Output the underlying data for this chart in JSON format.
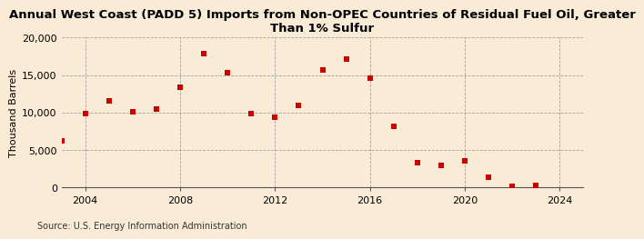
{
  "title": "Annual West Coast (PADD 5) Imports from Non-OPEC Countries of Residual Fuel Oil, Greater\nThan 1% Sulfur",
  "ylabel": "Thousand Barrels",
  "source": "Source: U.S. Energy Information Administration",
  "background_color": "#faebd7",
  "plot_bg_color": "#faebd7",
  "marker_color": "#cc0000",
  "years": [
    2003,
    2004,
    2005,
    2006,
    2007,
    2008,
    2009,
    2010,
    2011,
    2012,
    2013,
    2014,
    2015,
    2016,
    2017,
    2018,
    2019,
    2020,
    2021,
    2022,
    2023,
    2024
  ],
  "values": [
    6200,
    9800,
    11500,
    10100,
    10400,
    13400,
    17800,
    15300,
    9900,
    9400,
    11000,
    15700,
    17100,
    14600,
    8200,
    3300,
    2900,
    3600,
    1400,
    100,
    300,
    null
  ],
  "xlim": [
    2003,
    2025
  ],
  "ylim": [
    0,
    20000
  ],
  "yticks": [
    0,
    5000,
    10000,
    15000,
    20000
  ],
  "xticks": [
    2004,
    2008,
    2012,
    2016,
    2020,
    2024
  ],
  "grid_color": "#999999",
  "title_fontsize": 9.5,
  "axis_fontsize": 8,
  "tick_fontsize": 8,
  "source_fontsize": 7
}
